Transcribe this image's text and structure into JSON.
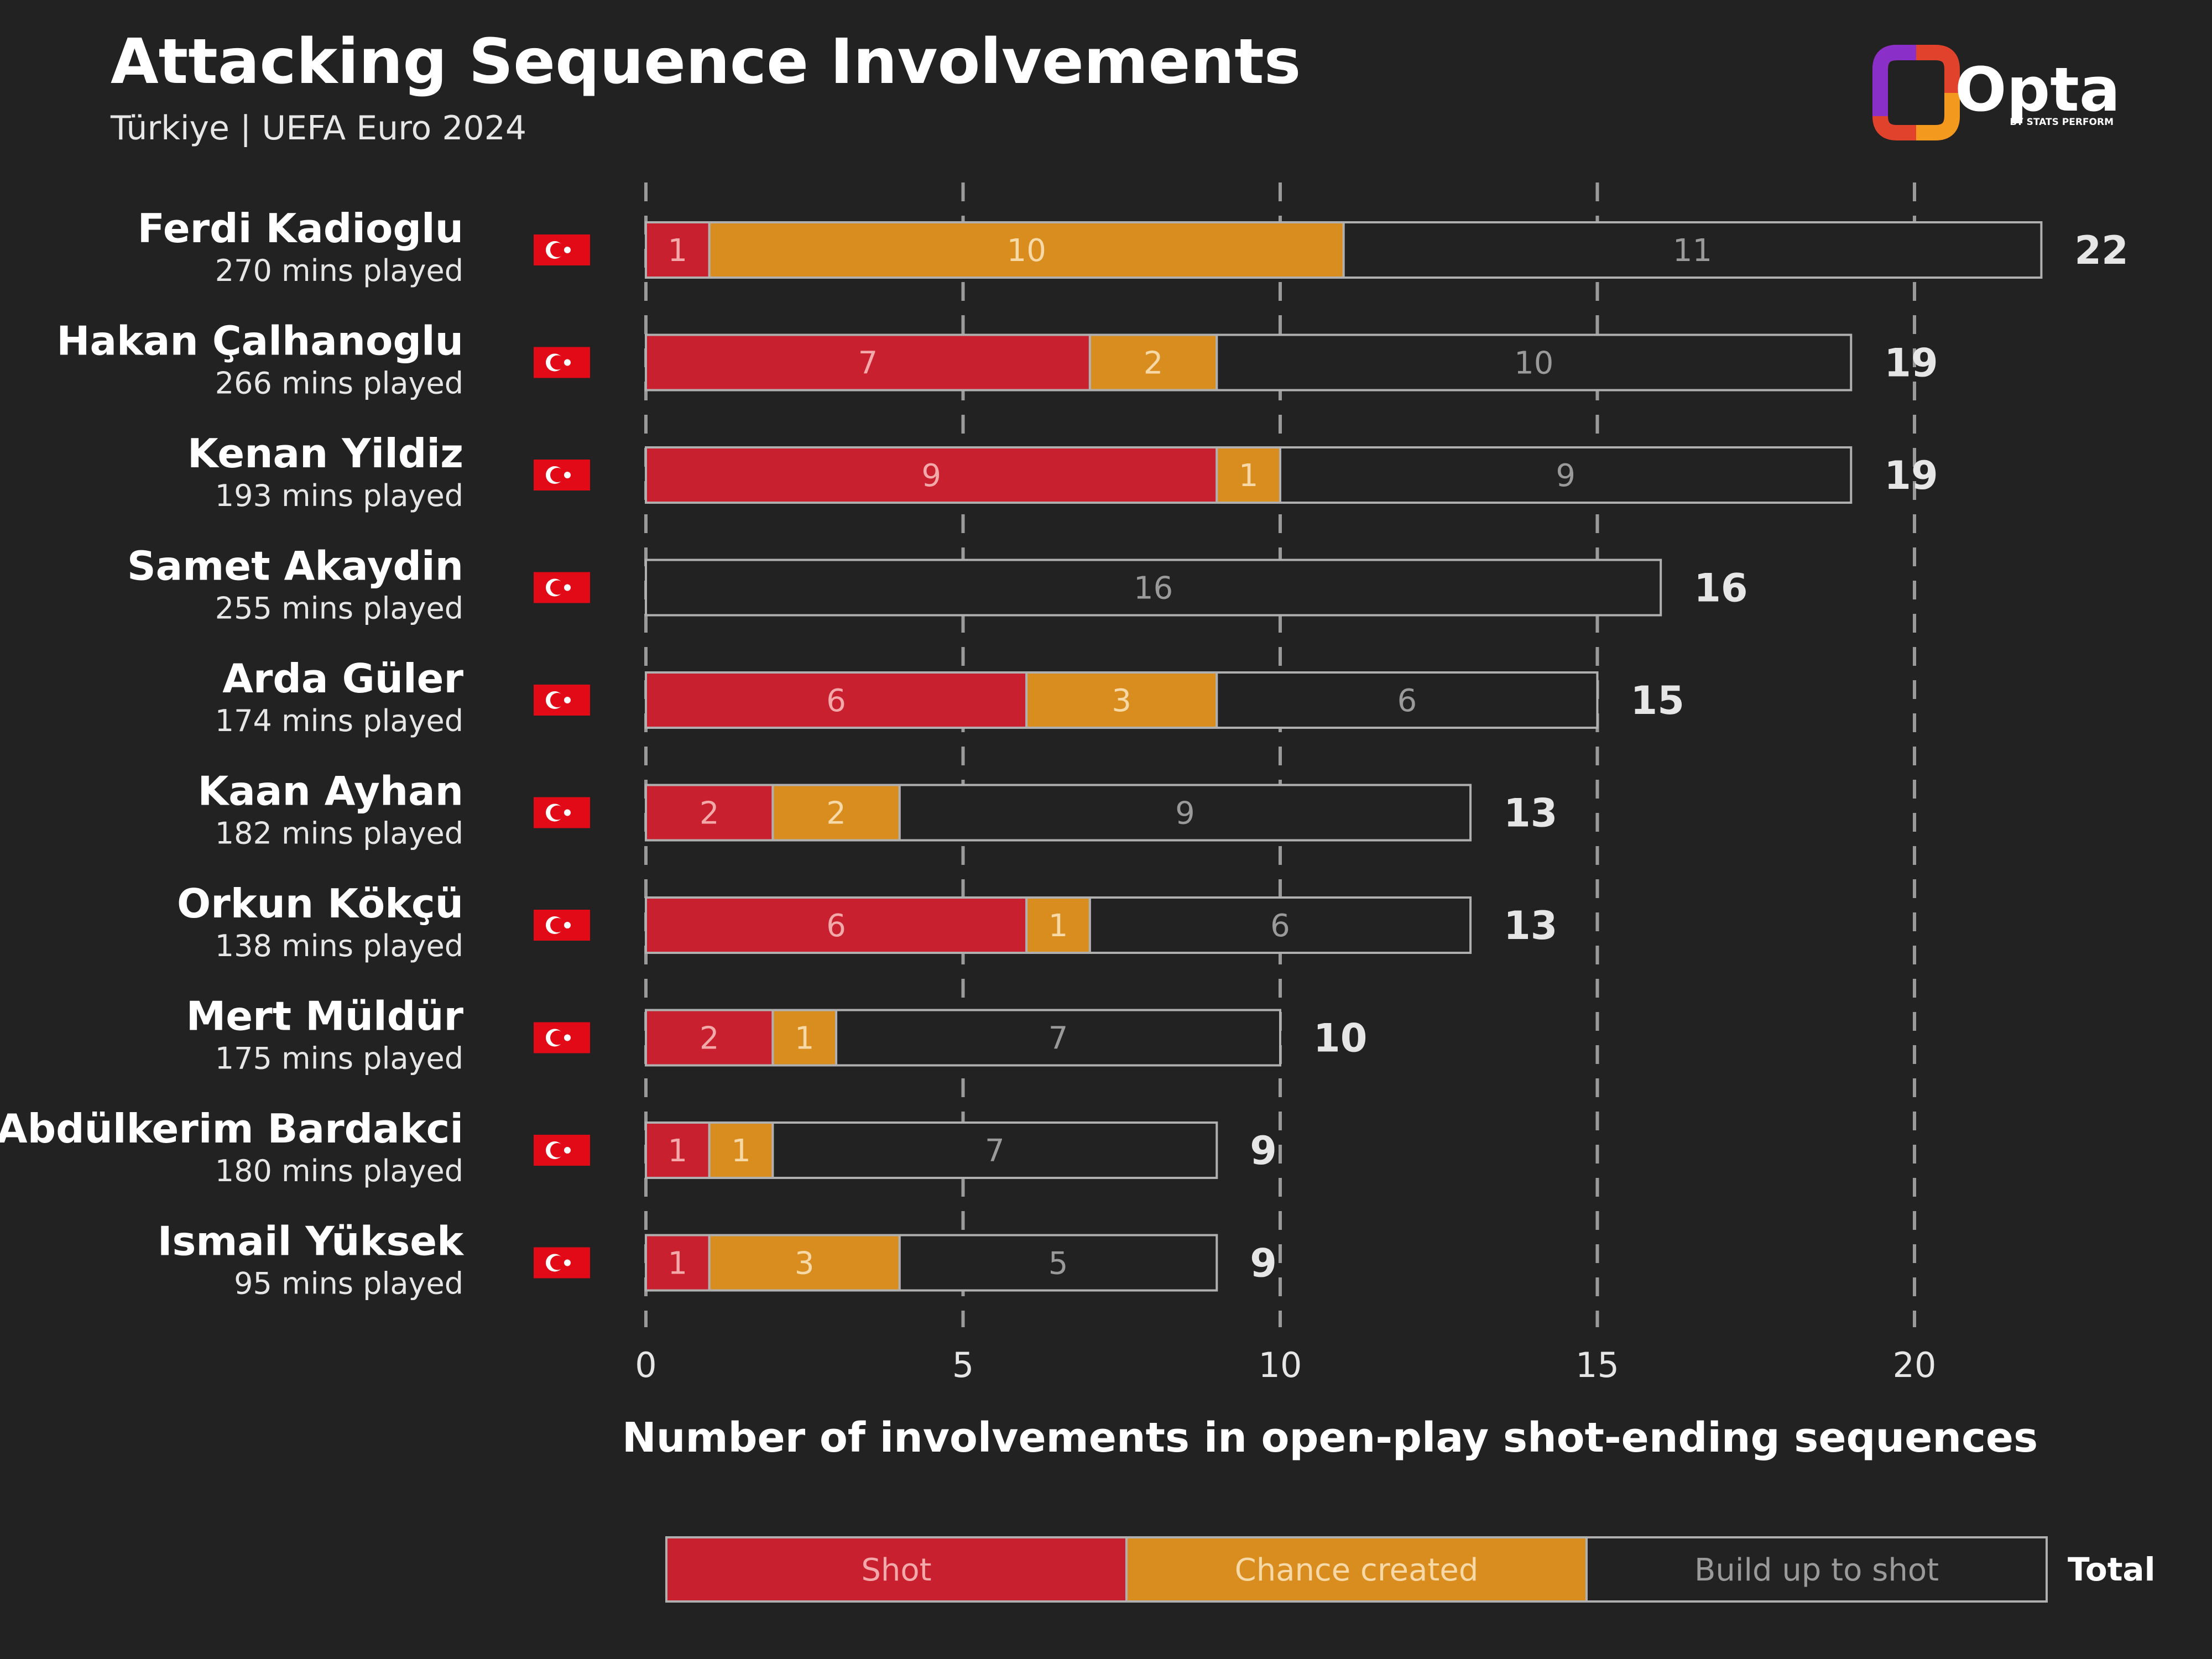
{
  "header": {
    "title": "Attacking Sequence Involvements",
    "subtitle": "Türkiye | UEFA Euro 2024"
  },
  "logo": {
    "text": "Opta",
    "subtext": "BY STATS PERFORM",
    "icon": "opta-logo-icon"
  },
  "flag_icon": "turkey-flag-icon",
  "colors": {
    "background": "#222222",
    "shot": "#c8202e",
    "chance": "#d98d1e",
    "buildup": "#222222",
    "outline": "#b0b0b0",
    "grid": "#9a9a9a"
  },
  "chart_data": {
    "type": "bar",
    "orientation": "horizontal",
    "stacked": true,
    "title": "Attacking Sequence Involvements",
    "subtitle": "Türkiye | UEFA Euro 2024",
    "xlabel": "Number of involvements in open-play shot-ending sequences",
    "xlim": [
      0,
      22
    ],
    "xticks": [
      0,
      5,
      10,
      15,
      20
    ],
    "grid": "vertical dashed",
    "legend_position": "bottom",
    "categories": [
      "Ferdi Kadioglu",
      "Hakan Çalhanoglu",
      "Kenan Yildiz",
      "Samet Akaydin",
      "Arda Güler",
      "Kaan Ayhan",
      "Orkun Kökçü",
      "Mert Müldür",
      "Abdülkerim Bardakci",
      "Ismail Yüksek"
    ],
    "minutes": [
      "270 mins played",
      "266 mins played",
      "193 mins played",
      "255 mins played",
      "174 mins played",
      "182 mins played",
      "138 mins played",
      "175 mins played",
      "180 mins played",
      "95 mins played"
    ],
    "series": [
      {
        "name": "Shot",
        "values": [
          1,
          7,
          9,
          0,
          6,
          2,
          6,
          2,
          1,
          1
        ]
      },
      {
        "name": "Chance created",
        "values": [
          10,
          2,
          1,
          0,
          3,
          2,
          1,
          1,
          1,
          3
        ]
      },
      {
        "name": "Build up to shot",
        "values": [
          11,
          10,
          9,
          16,
          6,
          9,
          6,
          7,
          7,
          5
        ]
      }
    ],
    "totals": [
      22,
      19,
      19,
      16,
      15,
      13,
      13,
      10,
      9,
      9
    ],
    "total_label": "Total"
  }
}
